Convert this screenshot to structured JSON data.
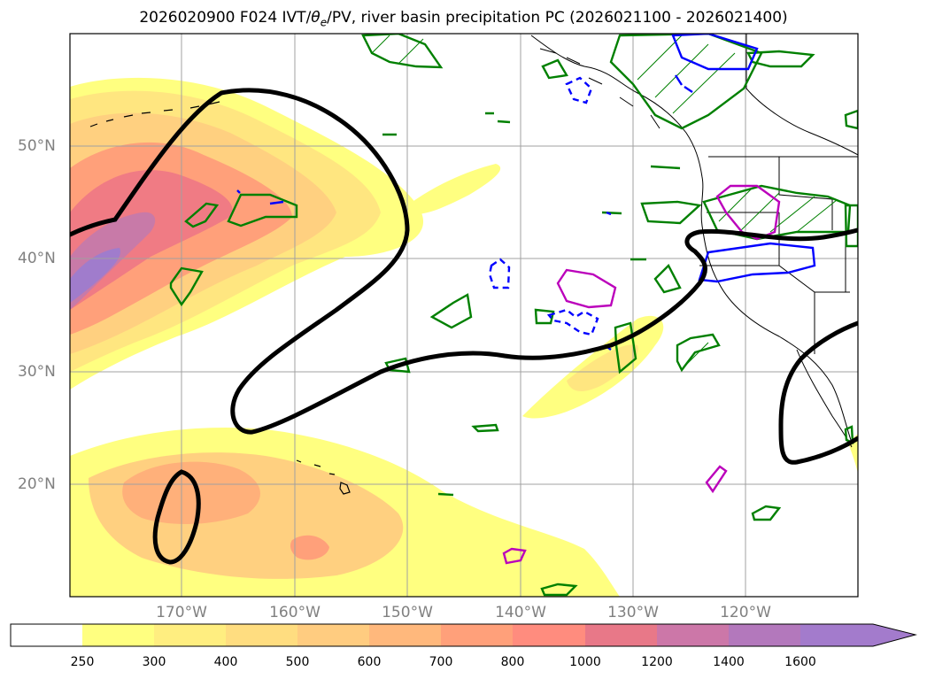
{
  "title": {
    "prefix": "2026020900 F024 IVT/",
    "theta": "θ",
    "theta_sub": "e",
    "suffix": "/PV, river basin precipitation PC (2026021100 - 2026021400)"
  },
  "map": {
    "lat_labels": [
      "50°N",
      "40°N",
      "30°N",
      "20°N"
    ],
    "lon_labels": [
      "170°W",
      "160°W",
      "150°W",
      "140°W",
      "130°W",
      "120°W"
    ]
  },
  "colorbar": {
    "labels": [
      "250",
      "300",
      "400",
      "500",
      "600",
      "700",
      "800",
      "1000",
      "1200",
      "1400",
      "1600"
    ],
    "colors": [
      "#ffffff",
      "#ffff80",
      "#ffee80",
      "#ffdd80",
      "#ffcc80",
      "#ffb87c",
      "#ffa07a",
      "#ff8c7e",
      "#e87888",
      "#cc77a8",
      "#b378bc",
      "#a37bcc"
    ]
  },
  "style": {
    "theta_color": "#000000",
    "pv_negative_color": "#0000ff",
    "pv_positive_color": "#008000",
    "precip_color": "#bb00bb",
    "grid_color": "#a0a0a0",
    "axis_label_color": "#808080"
  }
}
